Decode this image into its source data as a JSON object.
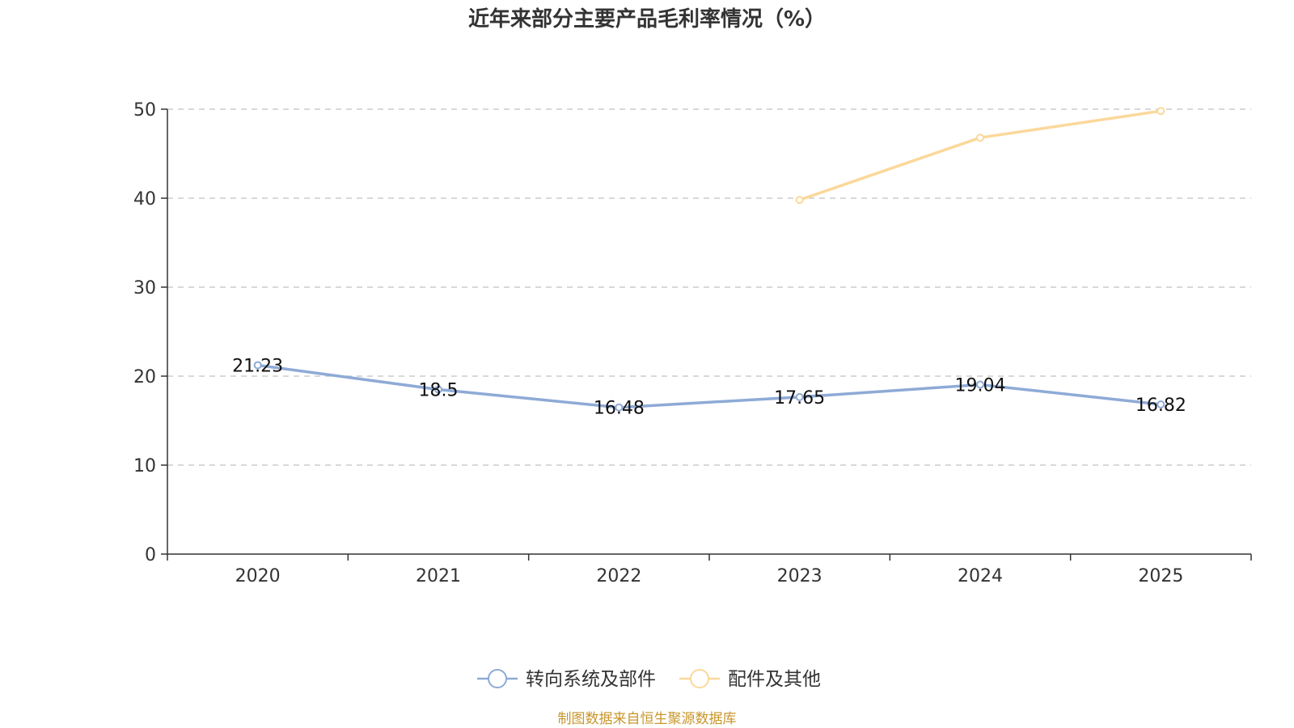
{
  "chart_data": {
    "type": "line",
    "title": "近年来部分主要产品毛利率情况（%）",
    "categories": [
      "2020",
      "2021",
      "2022",
      "2023",
      "2024",
      "2025"
    ],
    "ylim": [
      0,
      50
    ],
    "yticks": [
      0,
      10,
      20,
      30,
      40,
      50
    ],
    "grid": true,
    "legend_position": "bottom-center",
    "series": [
      {
        "name": "转向系统及部件",
        "color": "#8eaad6",
        "values": [
          21.23,
          18.5,
          16.48,
          17.65,
          19.04,
          16.82
        ],
        "labels": [
          "21.23",
          "18.5",
          "16.48",
          "17.65",
          "19.04",
          "16.82"
        ],
        "show_labels": true
      },
      {
        "name": "配件及其他",
        "color": "#fbd89a",
        "values": [
          null,
          null,
          null,
          39.8,
          46.8,
          49.8
        ],
        "labels": [],
        "show_labels": false
      }
    ],
    "source": "制图数据来自恒生聚源数据库"
  }
}
